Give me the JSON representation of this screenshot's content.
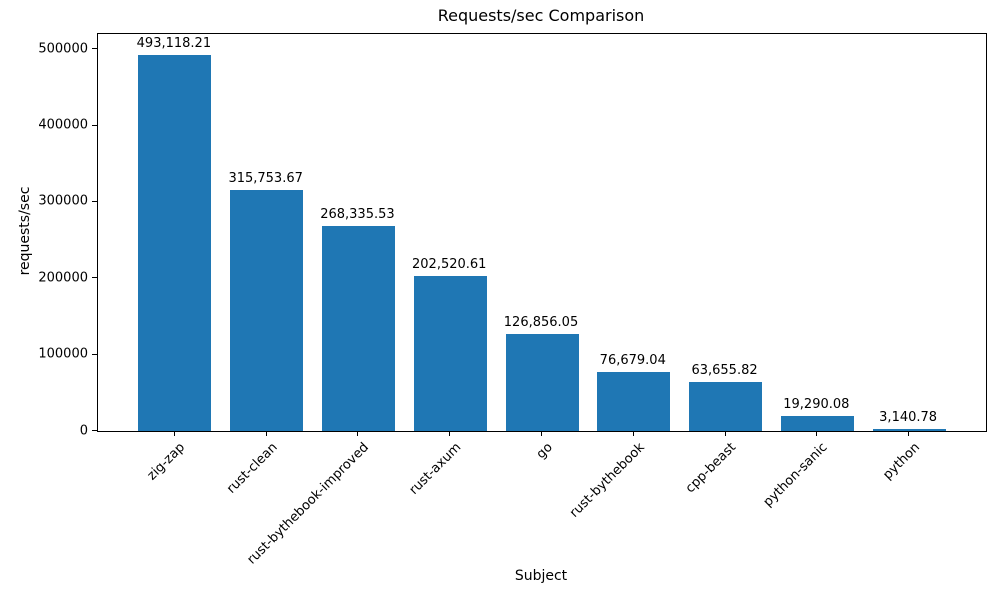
{
  "chart_data": {
    "type": "bar",
    "title": "Requests/sec Comparison",
    "xlabel": "Subject",
    "ylabel": "requests/sec",
    "categories": [
      "zig-zap",
      "rust-clean",
      "rust-bythebook-improved",
      "rust-axum",
      "go",
      "rust-bythebook",
      "cpp-beast",
      "python-sanic",
      "python"
    ],
    "values": [
      493118.21,
      315753.67,
      268335.53,
      202520.61,
      126856.05,
      76679.04,
      63655.82,
      19290.08,
      3140.78
    ],
    "value_labels": [
      "493,118.21",
      "315,753.67",
      "268,335.53",
      "202,520.61",
      "126,856.05",
      "76,679.04",
      "63,655.82",
      "19,290.08",
      "3,140.78"
    ],
    "yticks": [
      0,
      100000,
      200000,
      300000,
      400000,
      500000
    ],
    "ytick_labels": [
      "0",
      "100000",
      "200000",
      "300000",
      "400000",
      "500000"
    ],
    "ylim": [
      0,
      520000
    ],
    "bar_color": "#1f77b4",
    "grid": false,
    "legend": "none",
    "x_tick_rotation": 45
  }
}
